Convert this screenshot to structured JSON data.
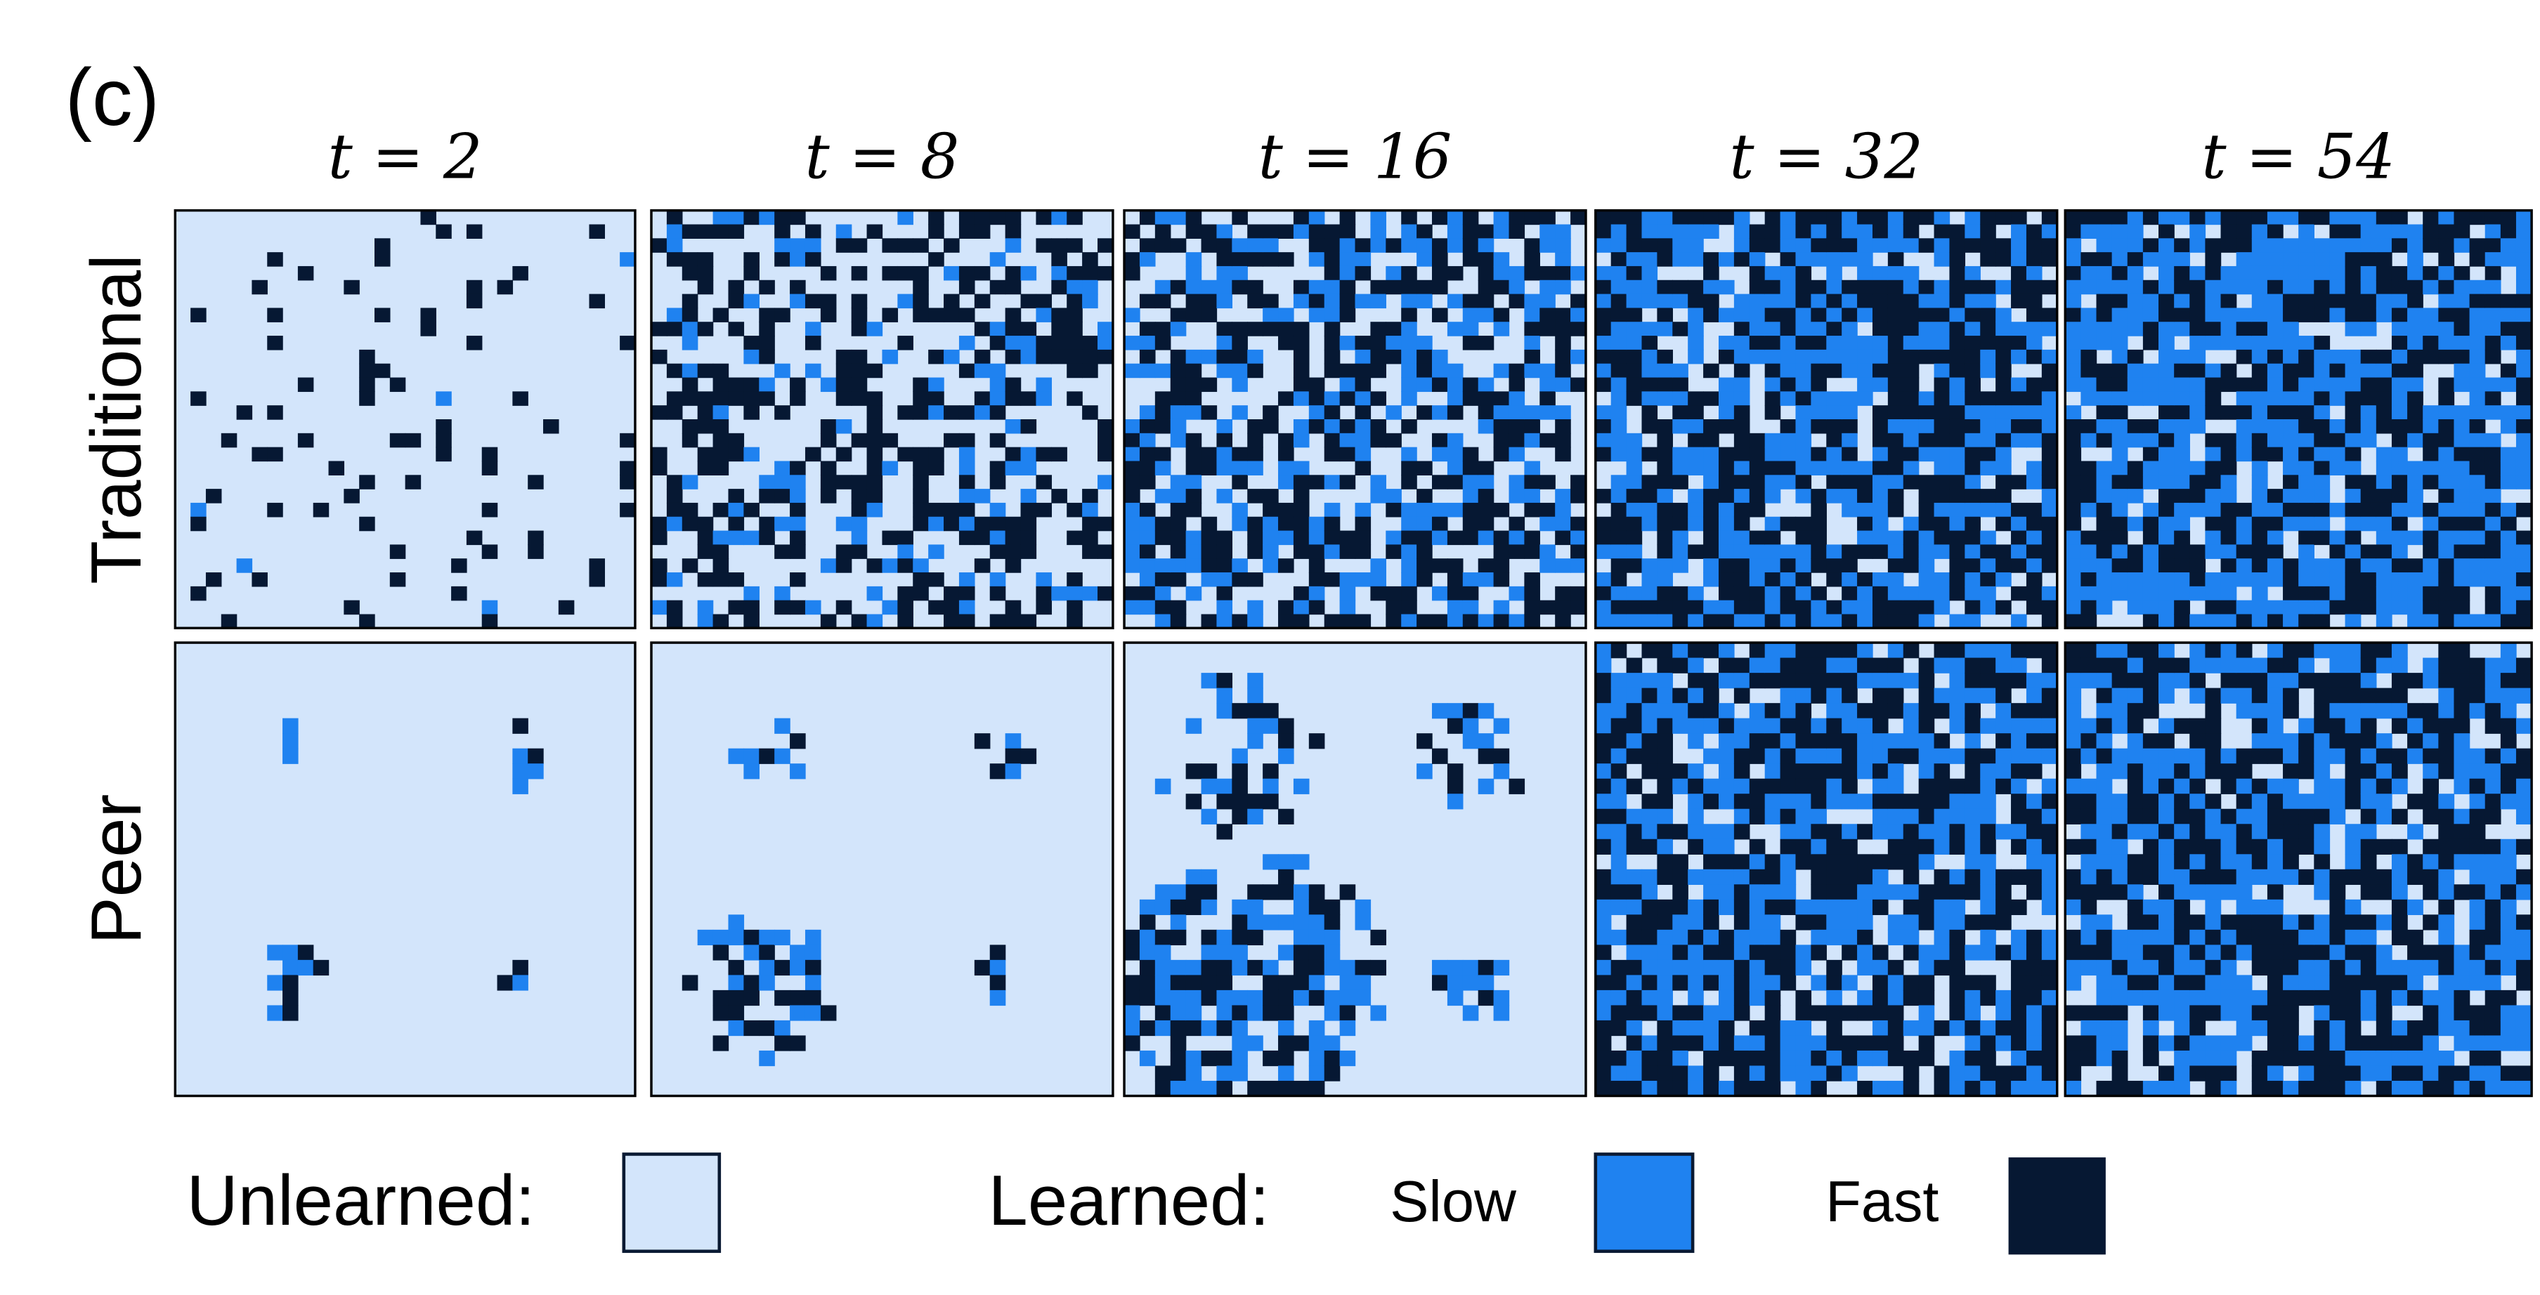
{
  "label": "(c)",
  "columns": [
    "t = 2",
    "t = 8",
    "t = 16",
    "t = 32",
    "t = 54"
  ],
  "rows": [
    "Traditional",
    "Peer"
  ],
  "legend": {
    "unlearned": "Unlearned:",
    "learned": "Learned:",
    "slow": "Slow",
    "fast": "Fast"
  }
}
